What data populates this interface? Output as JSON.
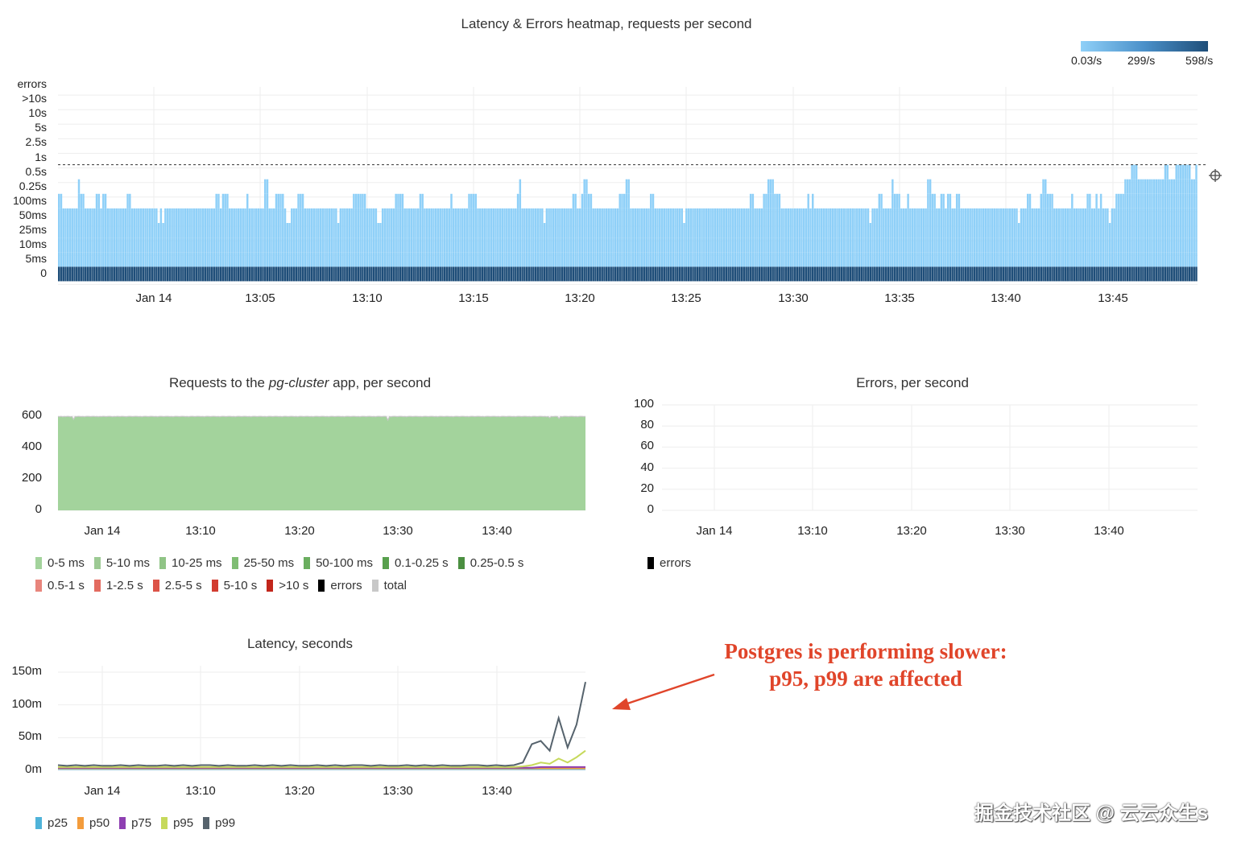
{
  "chart_data": [
    {
      "type": "heatmap",
      "title": "Latency & Errors heatmap, requests per second",
      "y_buckets": [
        "0",
        "5ms",
        "10ms",
        "25ms",
        "50ms",
        "100ms",
        "0.25s",
        "0.5s",
        "1s",
        "2.5s",
        "5s",
        "10s",
        ">10s",
        "errors"
      ],
      "x_ticks": [
        "Jan 14",
        "13:05",
        "13:10",
        "13:15",
        "13:20",
        "13:25",
        "13:30",
        "13:35",
        "13:40",
        "13:45"
      ],
      "color_scale": {
        "min_label": "0.03/s",
        "mid_label": "299/s",
        "max_label": "598/s",
        "min_color": "#8fd0f8",
        "max_color": "#1f4e79"
      },
      "top_bucket_per_column": [
        5,
        5,
        4,
        4,
        4,
        4,
        4,
        4,
        4,
        6,
        5,
        5,
        4,
        4,
        4,
        4,
        4,
        5,
        5,
        4,
        5,
        5,
        4,
        4,
        4,
        4,
        4,
        4,
        4,
        4,
        4,
        5,
        5,
        4,
        4,
        4,
        4,
        4,
        4,
        4,
        4,
        4,
        4,
        4,
        4,
        3,
        4,
        3,
        4,
        4,
        4,
        4,
        4,
        4,
        4,
        4,
        4,
        4,
        4,
        4,
        4,
        4,
        4,
        4,
        4,
        4,
        4,
        4,
        4,
        4,
        4,
        5,
        5,
        4,
        5,
        5,
        5,
        4,
        4,
        4,
        4,
        4,
        4,
        4,
        4,
        5,
        4,
        4,
        4,
        4,
        4,
        4,
        4,
        6,
        6,
        4,
        4,
        4,
        5,
        5,
        5,
        5,
        4,
        3,
        3,
        4,
        4,
        4,
        5,
        5,
        5,
        4,
        4,
        4,
        4,
        4,
        4,
        4,
        4,
        4,
        4,
        4,
        4,
        4,
        4,
        4,
        3,
        4,
        4,
        4,
        4,
        4,
        4,
        5,
        5,
        5,
        5,
        5,
        5,
        4,
        4,
        4,
        4,
        4,
        3,
        3,
        4,
        4,
        4,
        4,
        4,
        4,
        5,
        5,
        5,
        5,
        4,
        4,
        4,
        4,
        4,
        4,
        4,
        5,
        5,
        4,
        4,
        4,
        4,
        4,
        4,
        4,
        4,
        4,
        4,
        4,
        4,
        5,
        4,
        4,
        4,
        4,
        4,
        4,
        4,
        5,
        5,
        5,
        5,
        4,
        4,
        4,
        4,
        4,
        4,
        4,
        4,
        4,
        4,
        4,
        4,
        4,
        4,
        4,
        4,
        4,
        4,
        5,
        6,
        4,
        4,
        4,
        4,
        4,
        4,
        4,
        4,
        4,
        4,
        3,
        4,
        4,
        4,
        4,
        4,
        4,
        4,
        4,
        4,
        4,
        4,
        4,
        5,
        5,
        4,
        4,
        5,
        6,
        6,
        5,
        5,
        4,
        4,
        4,
        4,
        4,
        4,
        4,
        4,
        4,
        4,
        4,
        4,
        5,
        5,
        5,
        6,
        6,
        4,
        4,
        4,
        4,
        4,
        4,
        4,
        4,
        4,
        5,
        5,
        4,
        4,
        4,
        4,
        4,
        4,
        4,
        4,
        4,
        4,
        4,
        4,
        4,
        3,
        4,
        4,
        4,
        4,
        4,
        4,
        4,
        4,
        4,
        4,
        4,
        4,
        4,
        4,
        4,
        4,
        4,
        4,
        4,
        4,
        4,
        4,
        4,
        4,
        4,
        4,
        4,
        4,
        4,
        5,
        5,
        4,
        4,
        4,
        4,
        5,
        5,
        6,
        6,
        6,
        5,
        5,
        5,
        4,
        4,
        4,
        4,
        4,
        4,
        4,
        4,
        4,
        4,
        4,
        4,
        5,
        4,
        5,
        4,
        4,
        4,
        4,
        4,
        4,
        4,
        4,
        4,
        4,
        4,
        4,
        4,
        4,
        4,
        4,
        4,
        4,
        4,
        4,
        4,
        4,
        4,
        4,
        4,
        3,
        4,
        4,
        4,
        5,
        5,
        4,
        4,
        4,
        4,
        6,
        5,
        5,
        5,
        4,
        4,
        4,
        5,
        4,
        4,
        4,
        4,
        4,
        4,
        4,
        4,
        6,
        6,
        5,
        5,
        4,
        4,
        5,
        5,
        4,
        5,
        5,
        4,
        4,
        5,
        5,
        4,
        4,
        4,
        4,
        4,
        4,
        4,
        4,
        4,
        4,
        4,
        4,
        4,
        4,
        4,
        4,
        4,
        4,
        4,
        4,
        4,
        4,
        4,
        4,
        4,
        4,
        3,
        4,
        4,
        4,
        5,
        5,
        4,
        4,
        4,
        4,
        5,
        6,
        6,
        5,
        5,
        5,
        4,
        4,
        4,
        4,
        4,
        4,
        4,
        4,
        5,
        4,
        4,
        4,
        4,
        4,
        4,
        5,
        5,
        4,
        4,
        5,
        4,
        5,
        4,
        4,
        4,
        3,
        4,
        4,
        5,
        5,
        5,
        5,
        6,
        6,
        6,
        7,
        7,
        7,
        6,
        6,
        6,
        6,
        6,
        6,
        6,
        6,
        6,
        6,
        6,
        6,
        7,
        7,
        6,
        6,
        6,
        7,
        7,
        7,
        7,
        7,
        7,
        7,
        6,
        6,
        7
      ],
      "reference_line": "0.5s"
    },
    {
      "type": "area",
      "title": "Requests to the pg-cluster app, per second",
      "title_parts": {
        "pre": "Requests to the ",
        "em": "pg-cluster",
        "post": " app, per second"
      },
      "y_ticks": [
        "600",
        "400",
        "200",
        "0"
      ],
      "ylim": [
        0,
        600
      ],
      "x_ticks": [
        "Jan 14",
        "13:10",
        "13:20",
        "13:30",
        "13:40"
      ],
      "total_rps": [
        598,
        597,
        599,
        596,
        598,
        597,
        599,
        598,
        596,
        598,
        580,
        598,
        597,
        599,
        598,
        597,
        598,
        596,
        598,
        599,
        598,
        597,
        598,
        599,
        597,
        598,
        596,
        598,
        597,
        599,
        598,
        597,
        598,
        599,
        598,
        596,
        598,
        597,
        599,
        598,
        597,
        599,
        598,
        597,
        596,
        598,
        599,
        598,
        597,
        598,
        599,
        598,
        597,
        598,
        596,
        598,
        599,
        598,
        597,
        598,
        599,
        598,
        597,
        598,
        596,
        598,
        599,
        598,
        597,
        598,
        599,
        598,
        597,
        598,
        596,
        598,
        599,
        598,
        597,
        598,
        599,
        598,
        597,
        598,
        596,
        598,
        599,
        598,
        597,
        598,
        599,
        598,
        597,
        598,
        596,
        598,
        599,
        598,
        597,
        598,
        599,
        598,
        597,
        598,
        596,
        598,
        599,
        598,
        597,
        598,
        599,
        598,
        597,
        598,
        596,
        598,
        599,
        598,
        597,
        598,
        599,
        598,
        597,
        598,
        596,
        598,
        599,
        598,
        597,
        598,
        599,
        598,
        597,
        598,
        596,
        598,
        599,
        598,
        597,
        598,
        599,
        598,
        597,
        598,
        596,
        598,
        599,
        598,
        597,
        598,
        599,
        598,
        597,
        598,
        596,
        598,
        599,
        598,
        597,
        598,
        599,
        598,
        597,
        598,
        596,
        598,
        599,
        598,
        597,
        598,
        599,
        598,
        597,
        598,
        596,
        598,
        599,
        598,
        597,
        598,
        599,
        598,
        597,
        598,
        596,
        598,
        599,
        598,
        597,
        598,
        599,
        598,
        597,
        598,
        596,
        598,
        599,
        598,
        597,
        598,
        599,
        598,
        597,
        598,
        596,
        598,
        599,
        598,
        597,
        598,
        599,
        598,
        575,
        598,
        596,
        598,
        599,
        598,
        597,
        598,
        599,
        598,
        597,
        598,
        596,
        598,
        599,
        598,
        597,
        598,
        599,
        598,
        597,
        598,
        596,
        598,
        599,
        598,
        597,
        598,
        599,
        598,
        597,
        598,
        596,
        598,
        599,
        598,
        597,
        598,
        599,
        598,
        597,
        598,
        596,
        598,
        599,
        598,
        597,
        598,
        599,
        598,
        597,
        598,
        596,
        598,
        599,
        598,
        597,
        598,
        599,
        598,
        597,
        598,
        596,
        598,
        599,
        598,
        597,
        598,
        599,
        598,
        597,
        598,
        596,
        598,
        599,
        598,
        597,
        598,
        599,
        598,
        597,
        598,
        596,
        598,
        599,
        598,
        597,
        598,
        599,
        598,
        597,
        598,
        596,
        598,
        599,
        598,
        597,
        598,
        599,
        598,
        597,
        598,
        596,
        598,
        590,
        598,
        597,
        598,
        599,
        598,
        585,
        598,
        596,
        598,
        599,
        598,
        597,
        598,
        599,
        598,
        597,
        598,
        596,
        598,
        599,
        598,
        597,
        598
      ],
      "legend": [
        {
          "label": "0-5 ms",
          "color": "#a3d39c"
        },
        {
          "label": "5-10 ms",
          "color": "#9dca94"
        },
        {
          "label": "10-25 ms",
          "color": "#90c486"
        },
        {
          "label": "25-50 ms",
          "color": "#7fbd73"
        },
        {
          "label": "50-100 ms",
          "color": "#6aae5f"
        },
        {
          "label": "0.1-0.25 s",
          "color": "#58a04d"
        },
        {
          "label": "0.25-0.5 s",
          "color": "#4b8f41"
        },
        {
          "label": "0.5-1 s",
          "color": "#e8857c"
        },
        {
          "label": "1-2.5 s",
          "color": "#e36b60"
        },
        {
          "label": "2.5-5 s",
          "color": "#dc5448"
        },
        {
          "label": "5-10 s",
          "color": "#d23c30"
        },
        {
          "label": ">10 s",
          "color": "#c2261b"
        },
        {
          "label": "errors",
          "color": "#000000"
        },
        {
          "label": "total",
          "color": "#c8c8c8"
        }
      ]
    },
    {
      "type": "line",
      "title": "Errors, per second",
      "y_ticks": [
        "100",
        "80",
        "60",
        "40",
        "20",
        "0"
      ],
      "ylim": [
        0,
        100
      ],
      "x_ticks": [
        "Jan 14",
        "13:10",
        "13:20",
        "13:30",
        "13:40"
      ],
      "series": [
        {
          "name": "errors",
          "color": "#000000",
          "values": []
        }
      ]
    },
    {
      "type": "line",
      "title": "Latency, seconds",
      "y_ticks": [
        "150m",
        "100m",
        "50m",
        "0m"
      ],
      "ylim": [
        0,
        0.15
      ],
      "x_ticks": [
        "Jan 14",
        "13:10",
        "13:20",
        "13:30",
        "13:40"
      ],
      "series": [
        {
          "name": "p25",
          "color": "#4fb3d9",
          "values": [
            0.002,
            0.002,
            0.002,
            0.002,
            0.002,
            0.002,
            0.002,
            0.002,
            0.002,
            0.002,
            0.002,
            0.002,
            0.002,
            0.002,
            0.002,
            0.002,
            0.002,
            0.002,
            0.002,
            0.002,
            0.002,
            0.002,
            0.002,
            0.002,
            0.002,
            0.002,
            0.002,
            0.002,
            0.002,
            0.002,
            0.002,
            0.002,
            0.002,
            0.002,
            0.002,
            0.002,
            0.002,
            0.002,
            0.002,
            0.002,
            0.002,
            0.002,
            0.002,
            0.002,
            0.002,
            0.002,
            0.002,
            0.002,
            0.002,
            0.002,
            0.002,
            0.002,
            0.002,
            0.002,
            0.002,
            0.002,
            0.002,
            0.002,
            0.002,
            0.002
          ]
        },
        {
          "name": "p50",
          "color": "#f39c3c",
          "values": [
            0.003,
            0.003,
            0.003,
            0.003,
            0.003,
            0.003,
            0.003,
            0.003,
            0.003,
            0.003,
            0.003,
            0.003,
            0.003,
            0.003,
            0.003,
            0.003,
            0.003,
            0.003,
            0.003,
            0.003,
            0.003,
            0.003,
            0.003,
            0.003,
            0.003,
            0.003,
            0.003,
            0.003,
            0.003,
            0.003,
            0.003,
            0.003,
            0.003,
            0.003,
            0.003,
            0.003,
            0.003,
            0.003,
            0.003,
            0.003,
            0.003,
            0.003,
            0.003,
            0.003,
            0.003,
            0.003,
            0.003,
            0.003,
            0.003,
            0.003,
            0.003,
            0.003,
            0.003,
            0.003,
            0.003,
            0.003,
            0.003,
            0.003,
            0.003,
            0.003
          ]
        },
        {
          "name": "p75",
          "color": "#8e3fb2",
          "values": [
            0.004,
            0.004,
            0.004,
            0.004,
            0.004,
            0.004,
            0.004,
            0.004,
            0.004,
            0.004,
            0.004,
            0.004,
            0.004,
            0.004,
            0.004,
            0.004,
            0.004,
            0.004,
            0.004,
            0.004,
            0.004,
            0.004,
            0.004,
            0.004,
            0.004,
            0.004,
            0.004,
            0.004,
            0.004,
            0.004,
            0.004,
            0.004,
            0.004,
            0.004,
            0.004,
            0.004,
            0.004,
            0.004,
            0.004,
            0.004,
            0.004,
            0.004,
            0.004,
            0.004,
            0.004,
            0.004,
            0.004,
            0.004,
            0.004,
            0.004,
            0.004,
            0.004,
            0.004,
            0.004,
            0.005,
            0.005,
            0.005,
            0.005,
            0.005,
            0.005
          ]
        },
        {
          "name": "p95",
          "color": "#c6d95b",
          "values": [
            0.005,
            0.005,
            0.005,
            0.005,
            0.005,
            0.005,
            0.005,
            0.005,
            0.005,
            0.005,
            0.005,
            0.005,
            0.005,
            0.005,
            0.005,
            0.005,
            0.005,
            0.005,
            0.005,
            0.005,
            0.005,
            0.005,
            0.005,
            0.005,
            0.005,
            0.005,
            0.005,
            0.005,
            0.005,
            0.005,
            0.005,
            0.005,
            0.005,
            0.005,
            0.005,
            0.005,
            0.005,
            0.005,
            0.005,
            0.005,
            0.005,
            0.005,
            0.005,
            0.005,
            0.005,
            0.005,
            0.005,
            0.005,
            0.005,
            0.005,
            0.005,
            0.005,
            0.006,
            0.008,
            0.012,
            0.01,
            0.018,
            0.012,
            0.02,
            0.03
          ]
        },
        {
          "name": "p99",
          "color": "#56636d",
          "values": [
            0.008,
            0.007,
            0.008,
            0.007,
            0.008,
            0.007,
            0.007,
            0.008,
            0.007,
            0.008,
            0.007,
            0.007,
            0.008,
            0.007,
            0.008,
            0.007,
            0.008,
            0.008,
            0.007,
            0.008,
            0.007,
            0.007,
            0.008,
            0.007,
            0.008,
            0.007,
            0.008,
            0.007,
            0.007,
            0.008,
            0.007,
            0.008,
            0.007,
            0.008,
            0.008,
            0.007,
            0.008,
            0.007,
            0.007,
            0.008,
            0.007,
            0.008,
            0.007,
            0.008,
            0.007,
            0.007,
            0.008,
            0.008,
            0.007,
            0.008,
            0.007,
            0.008,
            0.012,
            0.04,
            0.045,
            0.03,
            0.08,
            0.035,
            0.07,
            0.135
          ]
        }
      ]
    }
  ],
  "annotation": {
    "line1": "Postgres is performing slower:",
    "line2": "p95, p99 are affected"
  },
  "watermark": "掘金技术社区 @ 云云众生s"
}
